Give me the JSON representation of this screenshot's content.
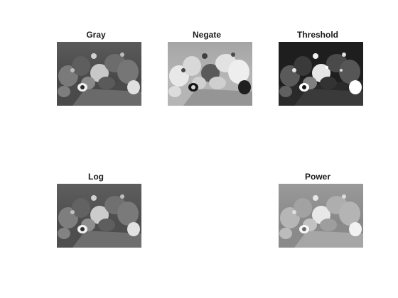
{
  "figure": {
    "panels": [
      {
        "title": "Gray"
      },
      {
        "title": "Negate"
      },
      {
        "title": "Threshold"
      },
      {
        "title": "Log"
      },
      {
        "title": "Power"
      }
    ]
  }
}
